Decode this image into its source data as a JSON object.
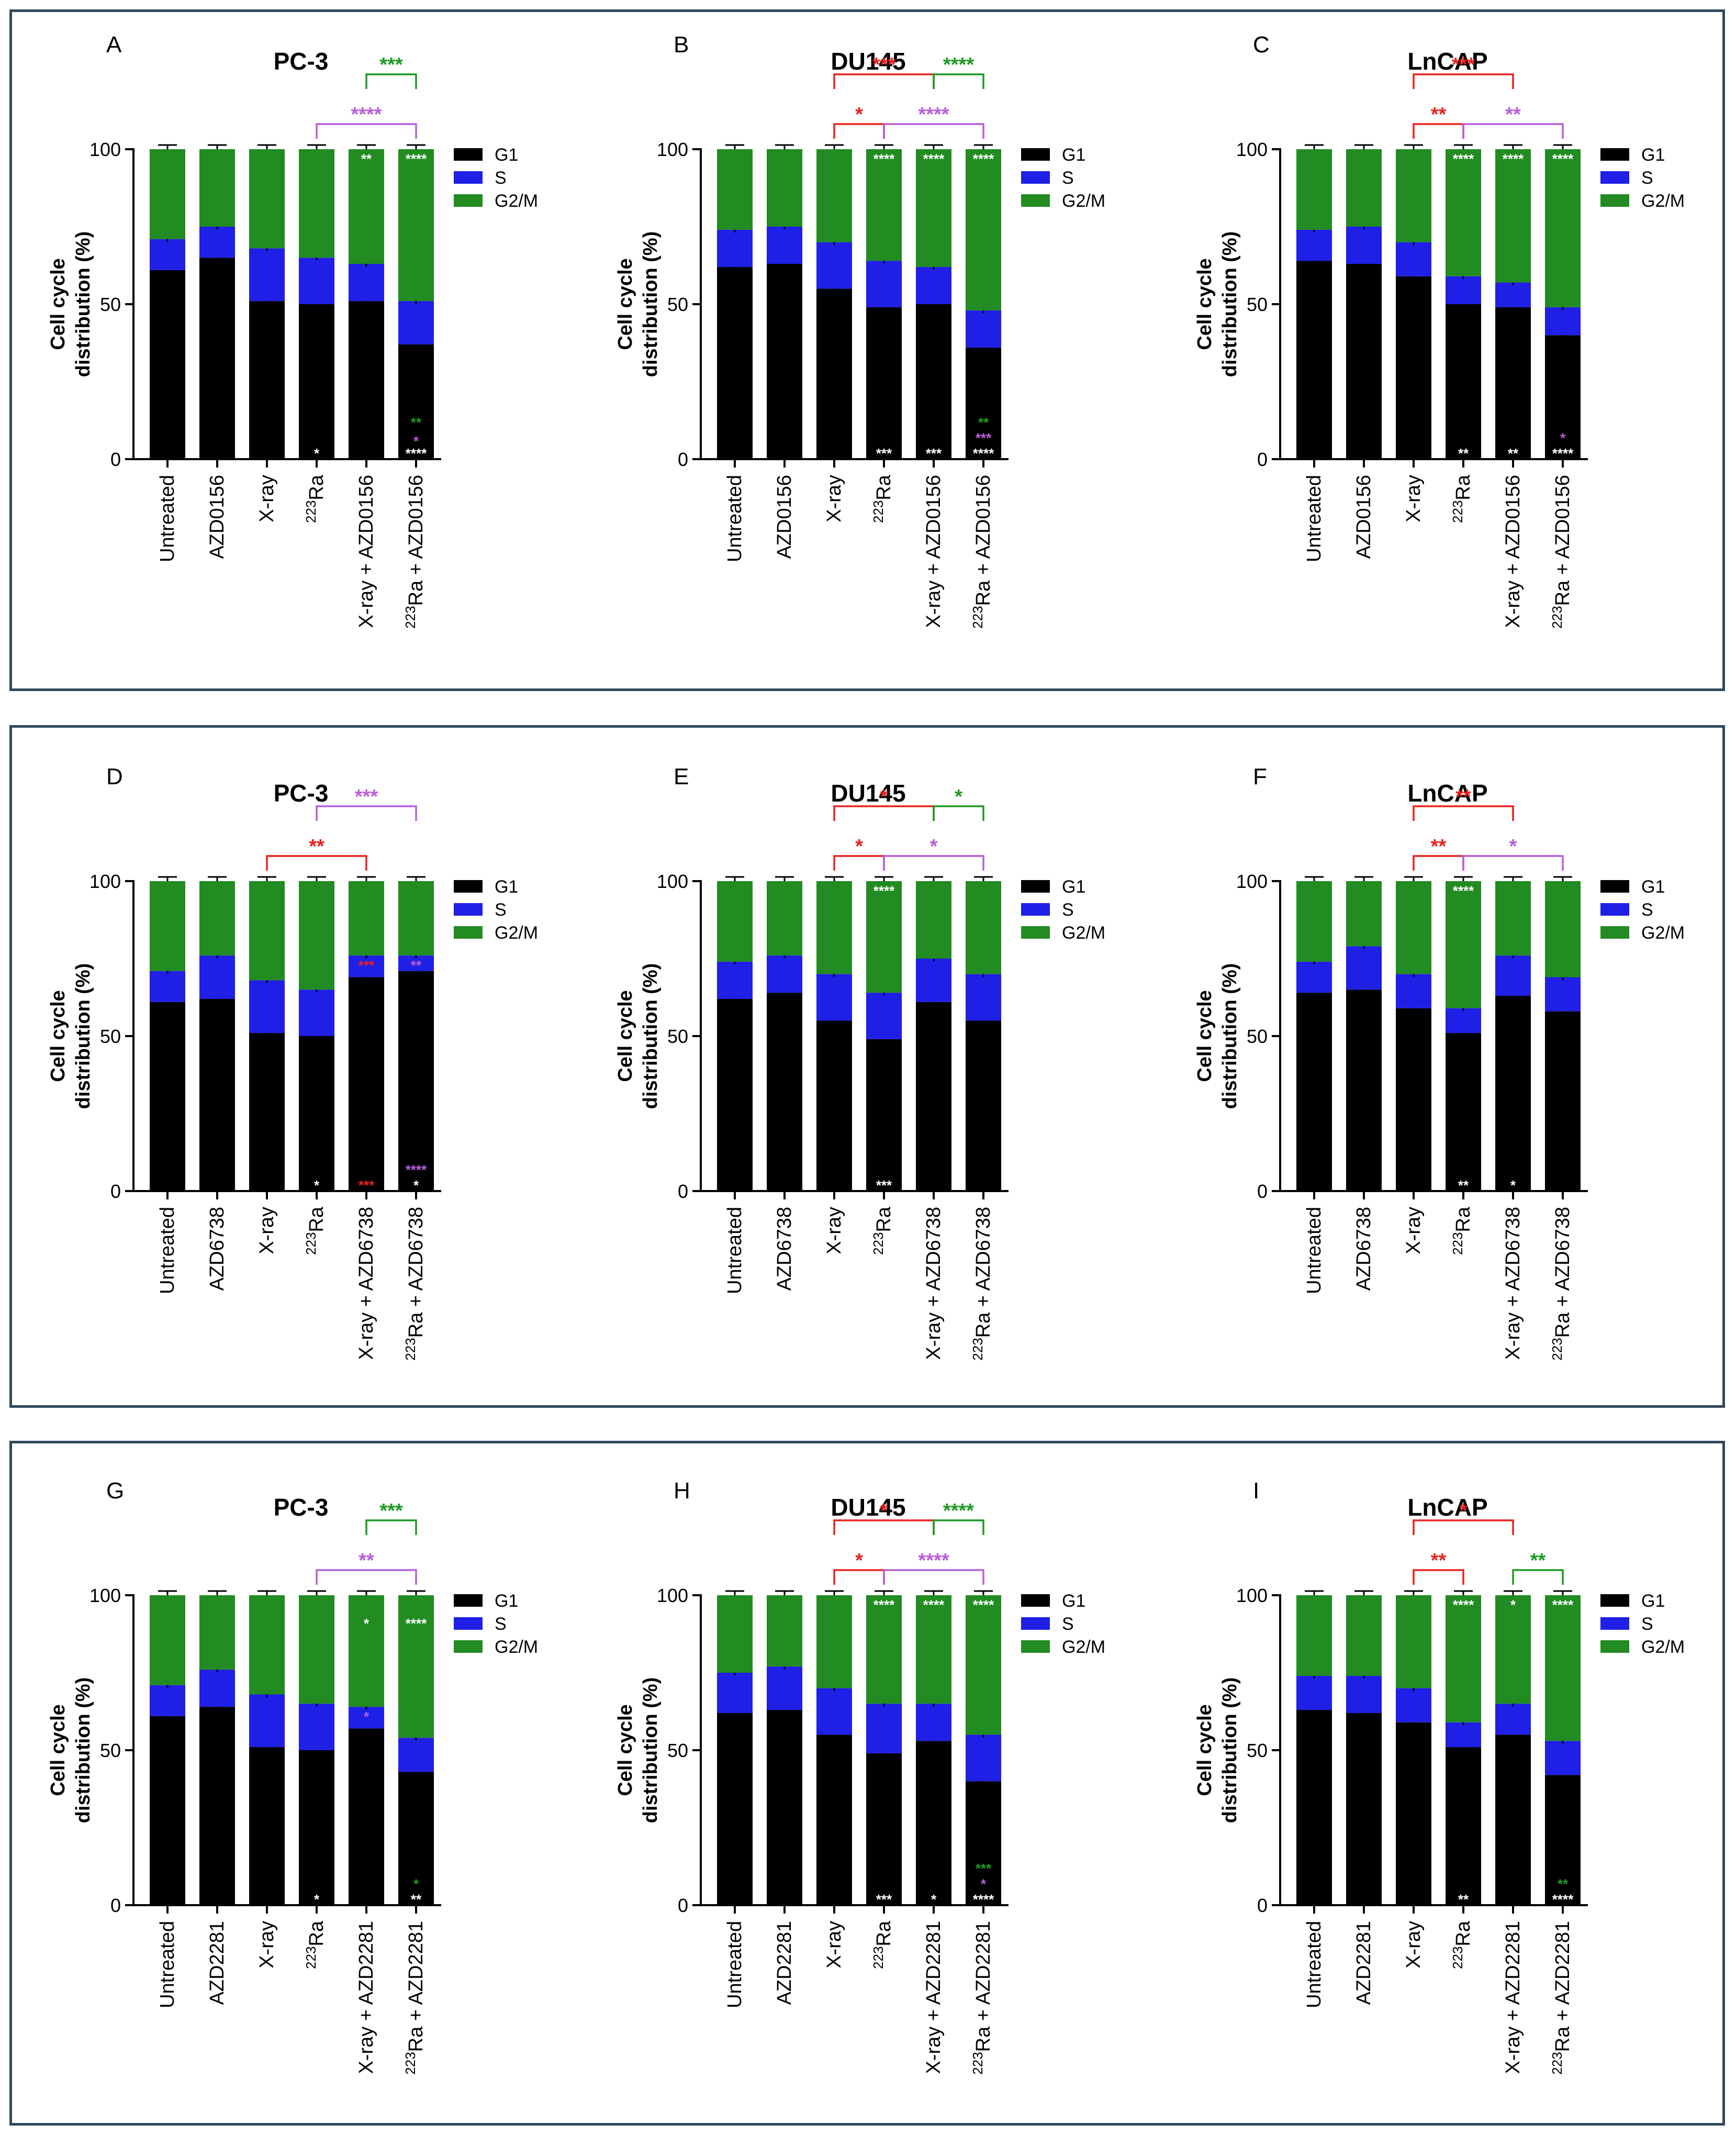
{
  "colors": {
    "G1": "#000000",
    "S": "#1f1fe6",
    "G2/M": "#228b22",
    "red": "#e8231f",
    "violet": "#b85fdc",
    "green": "#1e9a23",
    "frame": "#2e4a5e"
  },
  "chart_data": [
    {
      "panel": "A",
      "title": "PC-3",
      "type": "bar",
      "ylabel": [
        "Cell cycle",
        "distribution (%)"
      ],
      "ylim": [
        0,
        100
      ],
      "yticks": [
        0,
        50,
        100
      ],
      "categories": [
        "Untreated",
        "AZD0156",
        "X-ray",
        "223Ra",
        "X-ray + AZD0156",
        "223Ra + AZD0156"
      ],
      "series": [
        {
          "name": "G1",
          "values": [
            61,
            65,
            51,
            50,
            51,
            37
          ]
        },
        {
          "name": "S",
          "values": [
            10,
            10,
            17,
            15,
            12,
            14
          ]
        },
        {
          "name": "G2/M",
          "values": [
            29,
            25,
            32,
            35,
            37,
            49
          ]
        }
      ],
      "legend": [
        "G1",
        "S",
        "G2/M"
      ],
      "bar_marks": [
        {
          "bar": 3,
          "level": 1,
          "text": "*",
          "color": "white"
        },
        {
          "bar": 4,
          "level": 96,
          "text": "**",
          "color": "white"
        },
        {
          "bar": 5,
          "level": 96,
          "text": "****",
          "color": "white"
        },
        {
          "bar": 5,
          "level": 11,
          "text": "**",
          "color": "green"
        },
        {
          "bar": 5,
          "level": 5,
          "text": "*",
          "color": "violet"
        },
        {
          "bar": 5,
          "level": 1,
          "text": "****",
          "color": "white"
        }
      ],
      "brackets": [
        {
          "from": 3,
          "to": 5,
          "tier": 1,
          "text": "****",
          "color": "violet"
        },
        {
          "from": 4,
          "to": 5,
          "tier": 2,
          "text": "***",
          "color": "green"
        }
      ]
    },
    {
      "panel": "B",
      "title": "DU145",
      "type": "bar",
      "ylabel": [
        "Cell cycle",
        "distribution (%)"
      ],
      "ylim": [
        0,
        100
      ],
      "yticks": [
        0,
        50,
        100
      ],
      "categories": [
        "Untreated",
        "AZD0156",
        "X-ray",
        "223Ra",
        "X-ray + AZD0156",
        "223Ra + AZD0156"
      ],
      "series": [
        {
          "name": "G1",
          "values": [
            62,
            63,
            55,
            49,
            50,
            36
          ]
        },
        {
          "name": "S",
          "values": [
            12,
            12,
            15,
            15,
            12,
            12
          ]
        },
        {
          "name": "G2/M",
          "values": [
            26,
            25,
            30,
            36,
            38,
            52
          ]
        }
      ],
      "legend": [
        "G1",
        "S",
        "G2/M"
      ],
      "bar_marks": [
        {
          "bar": 3,
          "level": 96,
          "text": "****",
          "color": "white"
        },
        {
          "bar": 4,
          "level": 96,
          "text": "****",
          "color": "white"
        },
        {
          "bar": 5,
          "level": 96,
          "text": "****",
          "color": "white"
        },
        {
          "bar": 3,
          "level": 1,
          "text": "***",
          "color": "white"
        },
        {
          "bar": 4,
          "level": 1,
          "text": "***",
          "color": "white"
        },
        {
          "bar": 5,
          "level": 11,
          "text": "**",
          "color": "green"
        },
        {
          "bar": 5,
          "level": 6,
          "text": "***",
          "color": "violet"
        },
        {
          "bar": 5,
          "level": 1,
          "text": "****",
          "color": "white"
        }
      ],
      "brackets": [
        {
          "from": 2,
          "to": 3,
          "tier": 1,
          "text": "*",
          "color": "red"
        },
        {
          "from": 3,
          "to": 5,
          "tier": 1,
          "text": "****",
          "color": "violet"
        },
        {
          "from": 2,
          "to": 4,
          "tier": 2,
          "text": "***",
          "color": "red"
        },
        {
          "from": 4,
          "to": 5,
          "tier": 2,
          "text": "****",
          "color": "green"
        }
      ]
    },
    {
      "panel": "C",
      "title": "LnCAP",
      "type": "bar",
      "ylabel": [
        "Cell cycle",
        "distribution (%)"
      ],
      "ylim": [
        0,
        100
      ],
      "yticks": [
        0,
        50,
        100
      ],
      "categories": [
        "Untreated",
        "AZD0156",
        "X-ray",
        "223Ra",
        "X-ray + AZD0156",
        "223Ra + AZD0156"
      ],
      "series": [
        {
          "name": "G1",
          "values": [
            64,
            63,
            59,
            50,
            49,
            40
          ]
        },
        {
          "name": "S",
          "values": [
            10,
            12,
            11,
            9,
            8,
            9
          ]
        },
        {
          "name": "G2/M",
          "values": [
            26,
            25,
            30,
            41,
            43,
            51
          ]
        }
      ],
      "legend": [
        "G1",
        "S",
        "G2/M"
      ],
      "bar_marks": [
        {
          "bar": 3,
          "level": 96,
          "text": "****",
          "color": "white"
        },
        {
          "bar": 4,
          "level": 96,
          "text": "****",
          "color": "white"
        },
        {
          "bar": 5,
          "level": 96,
          "text": "****",
          "color": "white"
        },
        {
          "bar": 3,
          "level": 1,
          "text": "**",
          "color": "white"
        },
        {
          "bar": 4,
          "level": 1,
          "text": "**",
          "color": "white"
        },
        {
          "bar": 5,
          "level": 6,
          "text": "*",
          "color": "violet"
        },
        {
          "bar": 5,
          "level": 1,
          "text": "****",
          "color": "white"
        }
      ],
      "brackets": [
        {
          "from": 2,
          "to": 3,
          "tier": 1,
          "text": "**",
          "color": "red"
        },
        {
          "from": 3,
          "to": 5,
          "tier": 1,
          "text": "**",
          "color": "violet"
        },
        {
          "from": 2,
          "to": 4,
          "tier": 2,
          "text": "***",
          "color": "red"
        }
      ]
    },
    {
      "panel": "D",
      "title": "PC-3",
      "type": "bar",
      "ylabel": [
        "Cell cycle",
        "distribution (%)"
      ],
      "ylim": [
        0,
        100
      ],
      "yticks": [
        0,
        50,
        100
      ],
      "categories": [
        "Untreated",
        "AZD6738",
        "X-ray",
        "223Ra",
        "X-ray + AZD6738",
        "223Ra + AZD6738"
      ],
      "series": [
        {
          "name": "G1",
          "values": [
            61,
            62,
            51,
            50,
            69,
            71
          ]
        },
        {
          "name": "S",
          "values": [
            10,
            14,
            17,
            15,
            7,
            5
          ]
        },
        {
          "name": "G2/M",
          "values": [
            29,
            24,
            32,
            35,
            24,
            24
          ]
        }
      ],
      "legend": [
        "G1",
        "S",
        "G2/M"
      ],
      "bar_marks": [
        {
          "bar": 3,
          "level": 1,
          "text": "*",
          "color": "white"
        },
        {
          "bar": 4,
          "level": 72,
          "text": "***",
          "color": "red"
        },
        {
          "bar": 4,
          "level": 1,
          "text": "***",
          "color": "red"
        },
        {
          "bar": 5,
          "level": 72,
          "text": "**",
          "color": "violet"
        },
        {
          "bar": 5,
          "level": 6,
          "text": "****",
          "color": "violet"
        },
        {
          "bar": 5,
          "level": 1,
          "text": "*",
          "color": "white"
        }
      ],
      "brackets": [
        {
          "from": 2,
          "to": 4,
          "tier": 1,
          "text": "**",
          "color": "red"
        },
        {
          "from": 3,
          "to": 5,
          "tier": 2,
          "text": "***",
          "color": "violet"
        }
      ]
    },
    {
      "panel": "E",
      "title": "DU145",
      "type": "bar",
      "ylabel": [
        "Cell cycle",
        "distribution (%)"
      ],
      "ylim": [
        0,
        100
      ],
      "yticks": [
        0,
        50,
        100
      ],
      "categories": [
        "Untreated",
        "AZD6738",
        "X-ray",
        "223Ra",
        "X-ray + AZD6738",
        "223Ra + AZD6738"
      ],
      "series": [
        {
          "name": "G1",
          "values": [
            62,
            64,
            55,
            49,
            61,
            55
          ]
        },
        {
          "name": "S",
          "values": [
            12,
            12,
            15,
            15,
            14,
            15
          ]
        },
        {
          "name": "G2/M",
          "values": [
            26,
            24,
            30,
            36,
            25,
            30
          ]
        }
      ],
      "legend": [
        "G1",
        "S",
        "G2/M"
      ],
      "bar_marks": [
        {
          "bar": 3,
          "level": 96,
          "text": "****",
          "color": "white"
        },
        {
          "bar": 3,
          "level": 1,
          "text": "***",
          "color": "white"
        }
      ],
      "brackets": [
        {
          "from": 2,
          "to": 3,
          "tier": 1,
          "text": "*",
          "color": "red"
        },
        {
          "from": 3,
          "to": 5,
          "tier": 1,
          "text": "*",
          "color": "violet"
        },
        {
          "from": 2,
          "to": 4,
          "tier": 2,
          "text": "*",
          "color": "red"
        },
        {
          "from": 4,
          "to": 5,
          "tier": 2,
          "text": "*",
          "color": "green"
        }
      ]
    },
    {
      "panel": "F",
      "title": "LnCAP",
      "type": "bar",
      "ylabel": [
        "Cell cycle",
        "distribution (%)"
      ],
      "ylim": [
        0,
        100
      ],
      "yticks": [
        0,
        50,
        100
      ],
      "categories": [
        "Untreated",
        "AZD6738",
        "X-ray",
        "223Ra",
        "X-ray + AZD6738",
        "223Ra + AZD6738"
      ],
      "series": [
        {
          "name": "G1",
          "values": [
            64,
            65,
            59,
            51,
            63,
            58
          ]
        },
        {
          "name": "S",
          "values": [
            10,
            14,
            11,
            8,
            13,
            11
          ]
        },
        {
          "name": "G2/M",
          "values": [
            26,
            21,
            30,
            41,
            24,
            31
          ]
        }
      ],
      "legend": [
        "G1",
        "S",
        "G2/M"
      ],
      "bar_marks": [
        {
          "bar": 3,
          "level": 96,
          "text": "****",
          "color": "white"
        },
        {
          "bar": 3,
          "level": 1,
          "text": "**",
          "color": "white"
        },
        {
          "bar": 4,
          "level": 1,
          "text": "*",
          "color": "white"
        }
      ],
      "brackets": [
        {
          "from": 2,
          "to": 3,
          "tier": 1,
          "text": "**",
          "color": "red"
        },
        {
          "from": 3,
          "to": 5,
          "tier": 1,
          "text": "*",
          "color": "violet"
        },
        {
          "from": 2,
          "to": 4,
          "tier": 2,
          "text": "**",
          "color": "red"
        }
      ]
    },
    {
      "panel": "G",
      "title": "PC-3",
      "type": "bar",
      "ylabel": [
        "Cell cycle",
        "distribution (%)"
      ],
      "ylim": [
        0,
        100
      ],
      "yticks": [
        0,
        50,
        100
      ],
      "categories": [
        "Untreated",
        "AZD2281",
        "X-ray",
        "223Ra",
        "X-ray + AZD2281",
        "223Ra + AZD2281"
      ],
      "series": [
        {
          "name": "G1",
          "values": [
            61,
            64,
            51,
            50,
            57,
            43
          ]
        },
        {
          "name": "S",
          "values": [
            10,
            12,
            17,
            15,
            7,
            11
          ]
        },
        {
          "name": "G2/M",
          "values": [
            29,
            24,
            32,
            35,
            36,
            46
          ]
        }
      ],
      "legend": [
        "G1",
        "S",
        "G2/M"
      ],
      "bar_marks": [
        {
          "bar": 4,
          "level": 90,
          "text": "*",
          "color": "white"
        },
        {
          "bar": 4,
          "level": 60,
          "text": "*",
          "color": "violet"
        },
        {
          "bar": 5,
          "level": 90,
          "text": "****",
          "color": "white"
        },
        {
          "bar": 3,
          "level": 1,
          "text": "*",
          "color": "white"
        },
        {
          "bar": 5,
          "level": 6,
          "text": "*",
          "color": "green"
        },
        {
          "bar": 5,
          "level": 1,
          "text": "**",
          "color": "white"
        }
      ],
      "brackets": [
        {
          "from": 3,
          "to": 5,
          "tier": 1,
          "text": "**",
          "color": "violet"
        },
        {
          "from": 4,
          "to": 5,
          "tier": 2,
          "text": "***",
          "color": "green"
        }
      ]
    },
    {
      "panel": "H",
      "title": "DU145",
      "type": "bar",
      "ylabel": [
        "Cell cycle",
        "distribution (%)"
      ],
      "ylim": [
        0,
        100
      ],
      "yticks": [
        0,
        50,
        100
      ],
      "categories": [
        "Untreated",
        "AZD2281",
        "X-ray",
        "223Ra",
        "X-ray + AZD2281",
        "223Ra + AZD2281"
      ],
      "series": [
        {
          "name": "G1",
          "values": [
            62,
            63,
            55,
            49,
            53,
            40
          ]
        },
        {
          "name": "S",
          "values": [
            13,
            14,
            15,
            16,
            12,
            15
          ]
        },
        {
          "name": "G2/M",
          "values": [
            25,
            23,
            30,
            35,
            35,
            45
          ]
        }
      ],
      "legend": [
        "G1",
        "S",
        "G2/M"
      ],
      "bar_marks": [
        {
          "bar": 3,
          "level": 96,
          "text": "****",
          "color": "white"
        },
        {
          "bar": 4,
          "level": 96,
          "text": "****",
          "color": "white"
        },
        {
          "bar": 5,
          "level": 96,
          "text": "****",
          "color": "white"
        },
        {
          "bar": 3,
          "level": 1,
          "text": "***",
          "color": "white"
        },
        {
          "bar": 4,
          "level": 1,
          "text": "*",
          "color": "white"
        },
        {
          "bar": 5,
          "level": 11,
          "text": "***",
          "color": "green"
        },
        {
          "bar": 5,
          "level": 6,
          "text": "*",
          "color": "violet"
        },
        {
          "bar": 5,
          "level": 1,
          "text": "****",
          "color": "white"
        }
      ],
      "brackets": [
        {
          "from": 2,
          "to": 3,
          "tier": 1,
          "text": "*",
          "color": "red"
        },
        {
          "from": 3,
          "to": 5,
          "tier": 1,
          "text": "****",
          "color": "violet"
        },
        {
          "from": 2,
          "to": 4,
          "tier": 2,
          "text": "*",
          "color": "red"
        },
        {
          "from": 4,
          "to": 5,
          "tier": 2,
          "text": "****",
          "color": "green"
        }
      ]
    },
    {
      "panel": "I",
      "title": "LnCAP",
      "type": "bar",
      "ylabel": [
        "Cell cycle",
        "distribution (%)"
      ],
      "ylim": [
        0,
        100
      ],
      "yticks": [
        0,
        50,
        100
      ],
      "categories": [
        "Untreated",
        "AZD2281",
        "X-ray",
        "223Ra",
        "X-ray + AZD2281",
        "223Ra + AZD2281"
      ],
      "series": [
        {
          "name": "G1",
          "values": [
            63,
            62,
            59,
            51,
            55,
            42
          ]
        },
        {
          "name": "S",
          "values": [
            11,
            12,
            11,
            8,
            10,
            11
          ]
        },
        {
          "name": "G2/M",
          "values": [
            26,
            26,
            30,
            41,
            35,
            47
          ]
        }
      ],
      "legend": [
        "G1",
        "S",
        "G2/M"
      ],
      "bar_marks": [
        {
          "bar": 3,
          "level": 96,
          "text": "****",
          "color": "white"
        },
        {
          "bar": 4,
          "level": 96,
          "text": "*",
          "color": "white"
        },
        {
          "bar": 5,
          "level": 96,
          "text": "****",
          "color": "white"
        },
        {
          "bar": 3,
          "level": 1,
          "text": "**",
          "color": "white"
        },
        {
          "bar": 5,
          "level": 6,
          "text": "**",
          "color": "green"
        },
        {
          "bar": 5,
          "level": 1,
          "text": "****",
          "color": "white"
        }
      ],
      "brackets": [
        {
          "from": 2,
          "to": 3,
          "tier": 1,
          "text": "**",
          "color": "red"
        },
        {
          "from": 2,
          "to": 4,
          "tier": 2,
          "text": "*",
          "color": "red"
        },
        {
          "from": 4,
          "to": 5,
          "tier": 1,
          "text": "**",
          "color": "green"
        }
      ]
    }
  ]
}
